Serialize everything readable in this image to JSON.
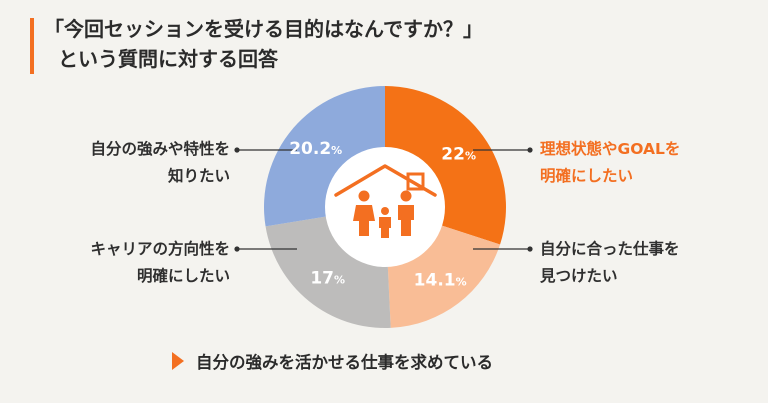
{
  "title": {
    "line1": "「今回セッションを受ける目的はなんですか？」",
    "line2": "という質問に対する回答"
  },
  "chart_data": {
    "type": "pie",
    "slices": [
      {
        "label_line1": "理想状態やGOALを",
        "label_line2": "明確にしたい",
        "value": 22,
        "value_text": "22",
        "color": "#f47216"
      },
      {
        "label_line1": "自分に合った仕事を",
        "label_line2": "見つけたい",
        "value": 14.1,
        "value_text": "14.1",
        "color": "#f9bd96"
      },
      {
        "label_line1": "キャリアの方向性を",
        "label_line2": "明確にしたい",
        "value": 17,
        "value_text": "17",
        "color": "#bdbcbb"
      },
      {
        "label_line1": "自分の強みや特性を",
        "label_line2": "知りたい",
        "value": 20.2,
        "value_text": "20.2",
        "color": "#8eaadc"
      }
    ],
    "unit": "%",
    "highlight_color": "#f36f21"
  },
  "footer": {
    "text": "自分の強みを活かせる仕事を求めている"
  }
}
